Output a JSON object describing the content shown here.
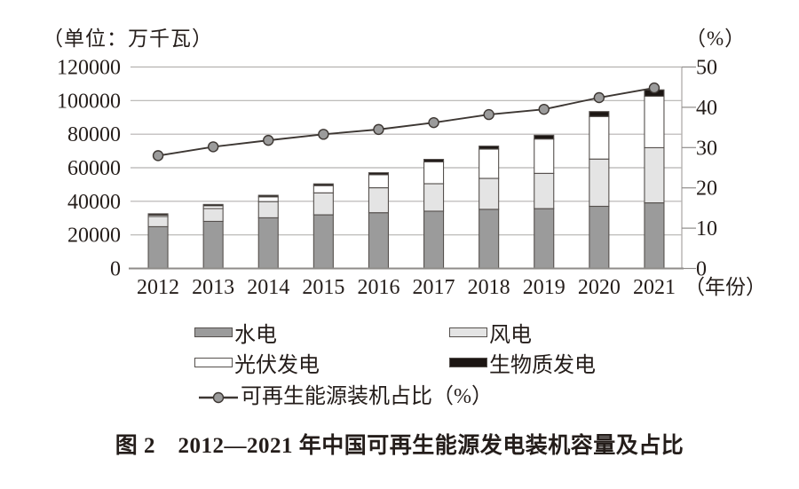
{
  "figure": {
    "left_axis_unit": "（单位：万千瓦）",
    "right_axis_unit": "（%）",
    "x_axis_suffix": "（年份）",
    "caption": "图 2　2012—2021 年中国可再生能源发电装机容量及占比"
  },
  "legend": {
    "hydro": "水电",
    "wind": "风电",
    "solar": "光伏发电",
    "biomass": "生物质发电",
    "share": "可再生能源装机占比（%）"
  },
  "colors": {
    "hydro": "#9b9b9b",
    "wind": "#e4e4e4",
    "solar": "#ffffff",
    "biomass": "#1c1613",
    "segment_border": "#55504d",
    "line": "#3d3733",
    "marker_fill": "#9b9b9b",
    "grid": "#b5b2b0",
    "axis": "#8f8c8a",
    "text": "#241d1a"
  },
  "chart_data": {
    "type": "bar",
    "stacked": true,
    "title": "图 2　2012—2021 年中国可再生能源发电装机容量及占比",
    "categories": [
      "2012",
      "2013",
      "2014",
      "2015",
      "2016",
      "2017",
      "2018",
      "2019",
      "2020",
      "2021"
    ],
    "series": [
      {
        "name": "水电",
        "values": [
          24890,
          28044,
          30183,
          31954,
          33211,
          34119,
          35226,
          35640,
          37016,
          39092
        ]
      },
      {
        "name": "风电",
        "values": [
          6083,
          7652,
          9657,
          13075,
          14864,
          16367,
          18426,
          21005,
          28153,
          32848
        ]
      },
      {
        "name": "光伏发电",
        "values": [
          341,
          1589,
          2805,
          4318,
          7742,
          13025,
          17446,
          20468,
          25343,
          30656
        ]
      },
      {
        "name": "生物质发电",
        "values": [
          580,
          850,
          946,
          1031,
          1214,
          1476,
          1781,
          2254,
          2952,
          3798
        ]
      }
    ],
    "line_series": {
      "name": "可再生能源装机占比（%）",
      "axis": "right",
      "values": [
        28.0,
        30.2,
        31.8,
        33.3,
        34.5,
        36.2,
        38.2,
        39.5,
        42.4,
        44.8
      ]
    },
    "left_axis": {
      "unit": "（单位：万千瓦）",
      "min": 0,
      "max": 120000,
      "tick_step": 20000
    },
    "right_axis": {
      "unit": "（%）",
      "min": 0,
      "max": 50,
      "tick_step": 10
    },
    "x_axis_label": "（年份）",
    "grid": true,
    "legend_position": "bottom"
  }
}
